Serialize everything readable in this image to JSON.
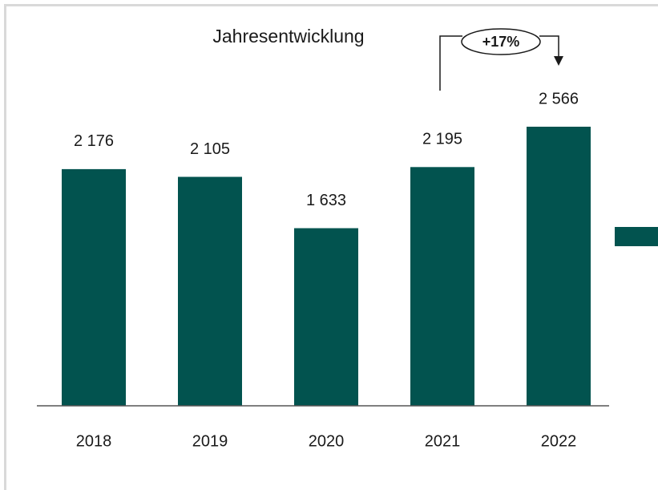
{
  "chart_data": {
    "type": "bar",
    "title": "Jahresentwicklung",
    "categories": [
      "2018",
      "2019",
      "2020",
      "2021",
      "2022"
    ],
    "values": [
      2176,
      2105,
      1633,
      2195,
      2566
    ],
    "value_labels": [
      "2 176",
      "2 105",
      "1 633",
      "2 195",
      "2 566"
    ],
    "color": "#02534f",
    "annotation": "+17%"
  }
}
